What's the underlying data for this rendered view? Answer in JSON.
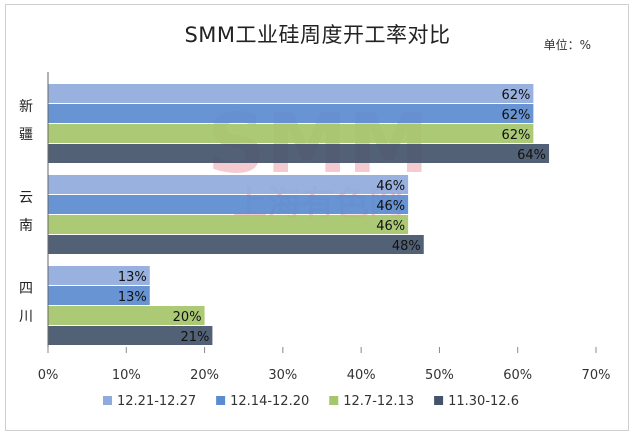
{
  "chart_data": {
    "type": "bar",
    "orientation": "horizontal",
    "title": "SMM工业硅周度开工率对比",
    "unit_label": "单位：%",
    "watermark": [
      "SMM",
      "上海有色网"
    ],
    "categories": [
      {
        "name": "新疆",
        "label_chars": [
          "新",
          "疆"
        ]
      },
      {
        "name": "云南",
        "label_chars": [
          "云",
          "南"
        ]
      },
      {
        "name": "四川",
        "label_chars": [
          "四",
          "川"
        ]
      }
    ],
    "series": [
      {
        "name": "12.21-12.27",
        "color": "#8FAADC",
        "values": [
          62,
          46,
          13
        ]
      },
      {
        "name": "12.14-12.20",
        "color": "#5B8BD0",
        "values": [
          62,
          46,
          13
        ]
      },
      {
        "name": "12.7-12.13",
        "color": "#A5C66A",
        "values": [
          62,
          46,
          20
        ]
      },
      {
        "name": "11.30-12.6",
        "color": "#44546A",
        "values": [
          64,
          48,
          21
        ]
      }
    ],
    "value_suffix": "%",
    "xlim": [
      0,
      70
    ],
    "xticks": [
      0,
      10,
      20,
      30,
      40,
      50,
      60,
      70
    ],
    "grid": false,
    "legend_position": "bottom"
  }
}
